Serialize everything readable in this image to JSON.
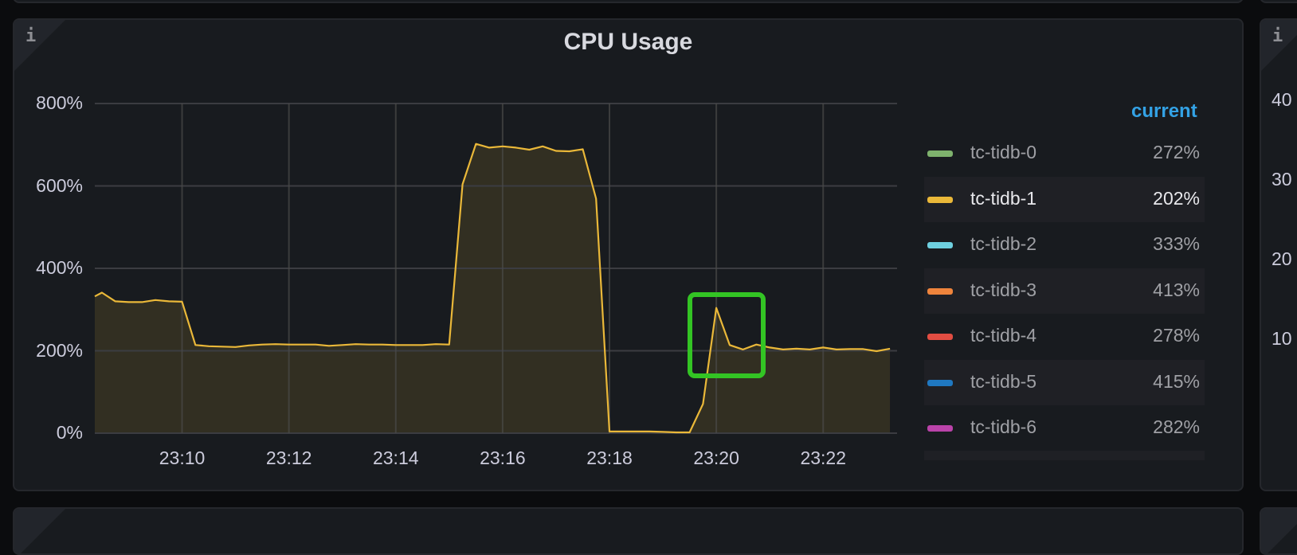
{
  "panel": {
    "title": "CPU Usage",
    "info_icon": "info-icon",
    "legend": {
      "header": "current",
      "items": [
        {
          "name": "tc-tidb-0",
          "value": "272%",
          "color": "#7eb26d"
        },
        {
          "name": "tc-tidb-1",
          "value": "202%",
          "color": "#eab839",
          "highlighted": true
        },
        {
          "name": "tc-tidb-2",
          "value": "333%",
          "color": "#6ed0e0"
        },
        {
          "name": "tc-tidb-3",
          "value": "413%",
          "color": "#ef843c"
        },
        {
          "name": "tc-tidb-4",
          "value": "278%",
          "color": "#e24d42"
        },
        {
          "name": "tc-tidb-5",
          "value": "415%",
          "color": "#1f78c1"
        },
        {
          "name": "tc-tidb-6",
          "value": "282%",
          "color": "#ba43a9"
        }
      ]
    }
  },
  "right_panel": {
    "y_ticks": [
      "40",
      "30",
      "20",
      "10"
    ]
  },
  "annotation": {
    "color": "#33c424"
  },
  "chart_data": {
    "type": "area",
    "title": "CPU Usage",
    "xlabel": "",
    "ylabel": "",
    "xlim": [
      "23:08:22",
      "23:23:23"
    ],
    "ylim": [
      0,
      800
    ],
    "y_ticks": [
      "0%",
      "200%",
      "400%",
      "600%",
      "800%"
    ],
    "y_tick_values": [
      0,
      200,
      400,
      600,
      800
    ],
    "x_ticks": [
      "23:10",
      "23:12",
      "23:14",
      "23:16",
      "23:18",
      "23:20",
      "23:22"
    ],
    "grid": true,
    "legend_placement": "right",
    "series": [
      {
        "name": "tc-tidb-1",
        "color": "#eab839",
        "x": [
          "23:08:22",
          "23:08:30",
          "23:08:45",
          "23:09:00",
          "23:09:15",
          "23:09:30",
          "23:09:45",
          "23:10:00",
          "23:10:15",
          "23:10:30",
          "23:10:45",
          "23:11:00",
          "23:11:15",
          "23:11:30",
          "23:11:45",
          "23:12:00",
          "23:12:15",
          "23:12:30",
          "23:12:45",
          "23:13:00",
          "23:13:15",
          "23:13:30",
          "23:13:45",
          "23:14:00",
          "23:14:15",
          "23:14:30",
          "23:14:45",
          "23:15:00",
          "23:15:15",
          "23:15:30",
          "23:15:45",
          "23:16:00",
          "23:16:15",
          "23:16:30",
          "23:16:45",
          "23:17:00",
          "23:17:15",
          "23:17:30",
          "23:17:45",
          "23:18:00",
          "23:18:15",
          "23:18:30",
          "23:18:45",
          "23:19:00",
          "23:19:15",
          "23:19:30",
          "23:19:45",
          "23:20:00",
          "23:20:15",
          "23:20:30",
          "23:20:45",
          "23:21:00",
          "23:21:15",
          "23:21:30",
          "23:21:45",
          "23:22:00",
          "23:22:15",
          "23:22:30",
          "23:22:45",
          "23:23:00",
          "23:23:15"
        ],
        "values": [
          332,
          341,
          320,
          318,
          318,
          323,
          320,
          319,
          214,
          211,
          210,
          209,
          213,
          215,
          216,
          215,
          215,
          215,
          212,
          214,
          216,
          215,
          215,
          214,
          214,
          214,
          216,
          215,
          604,
          702,
          693,
          696,
          693,
          688,
          696,
          685,
          684,
          689,
          569,
          4,
          4,
          4,
          4,
          3,
          2,
          2,
          71,
          304,
          214,
          203,
          215,
          208,
          203,
          205,
          203,
          208,
          203,
          204,
          204,
          199,
          205
        ]
      }
    ]
  }
}
